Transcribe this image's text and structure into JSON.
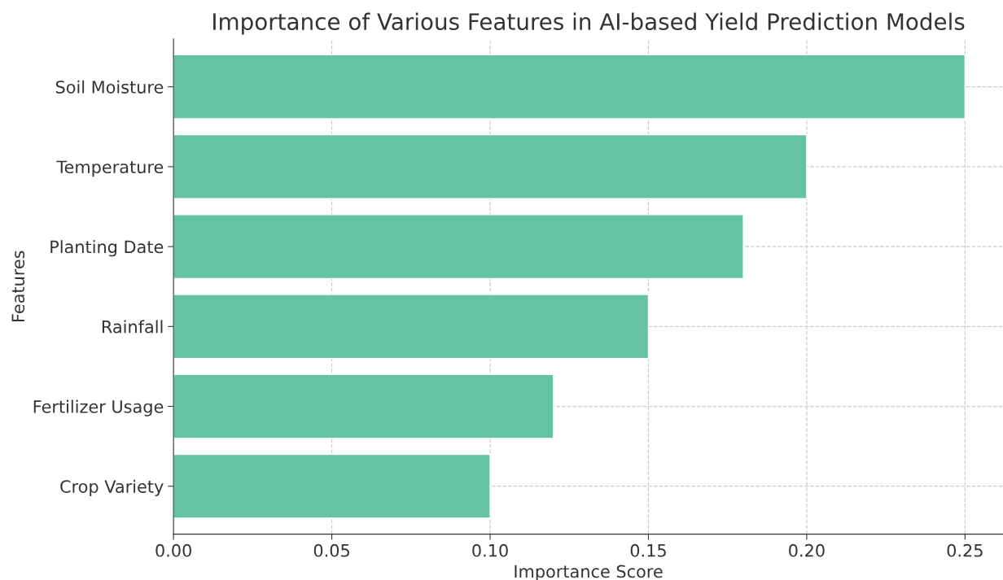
{
  "chart_data": {
    "type": "bar",
    "orientation": "horizontal",
    "title": "Importance of Various Features in AI-based Yield Prediction Models",
    "xlabel": "Importance Score",
    "ylabel": "Features",
    "categories": [
      "Soil Moisture",
      "Temperature",
      "Planting Date",
      "Rainfall",
      "Fertilizer Usage",
      "Crop Variety"
    ],
    "values": [
      0.25,
      0.2,
      0.18,
      0.15,
      0.12,
      0.1
    ],
    "color": "#66c2a5",
    "xlim": [
      0,
      0.262
    ],
    "xticks": [
      {
        "value": 0,
        "label": "0.00"
      },
      {
        "value": 0.05,
        "label": "0.05"
      },
      {
        "value": 0.1,
        "label": "0.10"
      },
      {
        "value": 0.15,
        "label": "0.15"
      },
      {
        "value": 0.2,
        "label": "0.20"
      },
      {
        "value": 0.25,
        "label": "0.25"
      }
    ],
    "grid": true,
    "legend": false
  }
}
